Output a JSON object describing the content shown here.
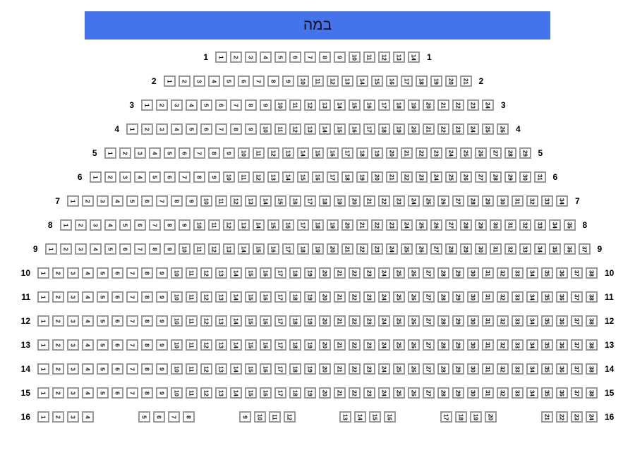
{
  "stage": {
    "label": "במה",
    "background_color": "#4573ea",
    "text_color": "#111111"
  },
  "seat_style": {
    "border_color": "#999999",
    "fill_color": "#ffffff",
    "number_color": "#111111"
  },
  "rows": [
    {
      "label": "1",
      "seats": [
        1,
        2,
        3,
        4,
        5,
        6,
        7,
        8,
        9,
        10,
        11,
        12,
        13,
        14
      ]
    },
    {
      "label": "2",
      "seats": [
        1,
        2,
        3,
        4,
        5,
        6,
        7,
        8,
        9,
        10,
        11,
        12,
        13,
        14,
        15,
        16,
        17,
        18,
        19,
        20,
        21
      ]
    },
    {
      "label": "3",
      "seats": [
        1,
        2,
        3,
        4,
        5,
        6,
        7,
        8,
        9,
        10,
        11,
        12,
        13,
        14,
        15,
        16,
        17,
        18,
        19,
        20,
        21,
        22,
        23,
        24
      ]
    },
    {
      "label": "4",
      "seats": [
        1,
        2,
        3,
        4,
        5,
        6,
        7,
        8,
        9,
        10,
        11,
        12,
        13,
        14,
        15,
        16,
        17,
        18,
        19,
        20,
        21,
        22,
        23,
        24,
        25,
        26
      ]
    },
    {
      "label": "5",
      "seats": [
        1,
        2,
        3,
        4,
        5,
        6,
        7,
        8,
        9,
        10,
        11,
        12,
        13,
        14,
        15,
        16,
        17,
        18,
        19,
        20,
        21,
        22,
        23,
        24,
        25,
        26,
        27,
        28,
        29
      ]
    },
    {
      "label": "6",
      "seats": [
        1,
        2,
        3,
        4,
        5,
        6,
        7,
        8,
        9,
        10,
        11,
        12,
        13,
        14,
        15,
        16,
        17,
        18,
        19,
        20,
        21,
        22,
        23,
        24,
        25,
        26,
        27,
        28,
        29,
        30,
        31
      ]
    },
    {
      "label": "7",
      "seats": [
        1,
        2,
        3,
        4,
        5,
        6,
        7,
        8,
        9,
        10,
        11,
        12,
        13,
        14,
        15,
        16,
        17,
        18,
        19,
        20,
        21,
        22,
        23,
        24,
        25,
        26,
        27,
        28,
        29,
        30,
        31,
        32,
        33,
        34
      ]
    },
    {
      "label": "8",
      "seats": [
        1,
        2,
        3,
        4,
        5,
        6,
        7,
        8,
        9,
        10,
        11,
        12,
        13,
        14,
        15,
        16,
        17,
        18,
        19,
        20,
        21,
        22,
        23,
        24,
        25,
        26,
        27,
        28,
        29,
        30,
        31,
        32,
        33,
        34,
        35
      ]
    },
    {
      "label": "9",
      "seats": [
        1,
        2,
        3,
        4,
        5,
        6,
        7,
        8,
        9,
        10,
        11,
        12,
        13,
        14,
        15,
        16,
        17,
        18,
        19,
        20,
        21,
        22,
        23,
        24,
        25,
        26,
        27,
        28,
        29,
        30,
        31,
        32,
        33,
        34,
        35,
        36,
        37
      ]
    },
    {
      "label": "10",
      "seats": [
        1,
        2,
        3,
        4,
        5,
        6,
        7,
        8,
        9,
        10,
        11,
        12,
        13,
        14,
        15,
        16,
        17,
        18,
        19,
        20,
        21,
        22,
        23,
        24,
        25,
        26,
        27,
        28,
        29,
        30,
        31,
        32,
        33,
        34,
        35,
        36,
        37,
        38
      ]
    },
    {
      "label": "11",
      "seats": [
        1,
        2,
        3,
        4,
        5,
        6,
        7,
        8,
        9,
        10,
        11,
        12,
        13,
        14,
        15,
        16,
        17,
        18,
        19,
        20,
        21,
        22,
        23,
        24,
        25,
        26,
        27,
        28,
        29,
        30,
        31,
        32,
        33,
        34,
        35,
        36,
        37,
        38
      ]
    },
    {
      "label": "12",
      "seats": [
        1,
        2,
        3,
        4,
        5,
        6,
        7,
        8,
        9,
        10,
        11,
        12,
        13,
        14,
        15,
        16,
        17,
        18,
        19,
        20,
        21,
        22,
        23,
        24,
        25,
        26,
        27,
        28,
        29,
        30,
        31,
        32,
        33,
        34,
        35,
        36,
        37,
        38
      ]
    },
    {
      "label": "13",
      "seats": [
        1,
        2,
        3,
        4,
        5,
        6,
        7,
        8,
        9,
        10,
        11,
        12,
        13,
        14,
        15,
        16,
        17,
        18,
        19,
        20,
        21,
        22,
        23,
        24,
        25,
        26,
        27,
        28,
        29,
        30,
        31,
        32,
        33,
        34,
        35,
        36,
        37,
        38
      ]
    },
    {
      "label": "14",
      "seats": [
        1,
        2,
        3,
        4,
        5,
        6,
        7,
        8,
        9,
        10,
        11,
        12,
        13,
        14,
        15,
        16,
        17,
        18,
        19,
        20,
        21,
        22,
        23,
        24,
        25,
        26,
        27,
        28,
        29,
        30,
        31,
        32,
        33,
        34,
        35,
        36,
        37,
        38
      ]
    },
    {
      "label": "15",
      "seats": [
        1,
        2,
        3,
        4,
        5,
        6,
        7,
        8,
        9,
        10,
        11,
        12,
        13,
        14,
        15,
        16,
        17,
        18,
        19,
        20,
        21,
        22,
        23,
        24,
        25,
        26,
        27,
        28,
        29,
        30,
        31,
        32,
        33,
        34,
        35,
        36,
        37,
        38
      ]
    },
    {
      "label": "16",
      "groups": [
        [
          1,
          2,
          3,
          4
        ],
        [
          5,
          6,
          7,
          8
        ],
        [
          9,
          10,
          11,
          12
        ],
        [
          13,
          14,
          15,
          16
        ],
        [
          17,
          18,
          19,
          20
        ],
        [
          21,
          22,
          23,
          24
        ]
      ]
    }
  ]
}
